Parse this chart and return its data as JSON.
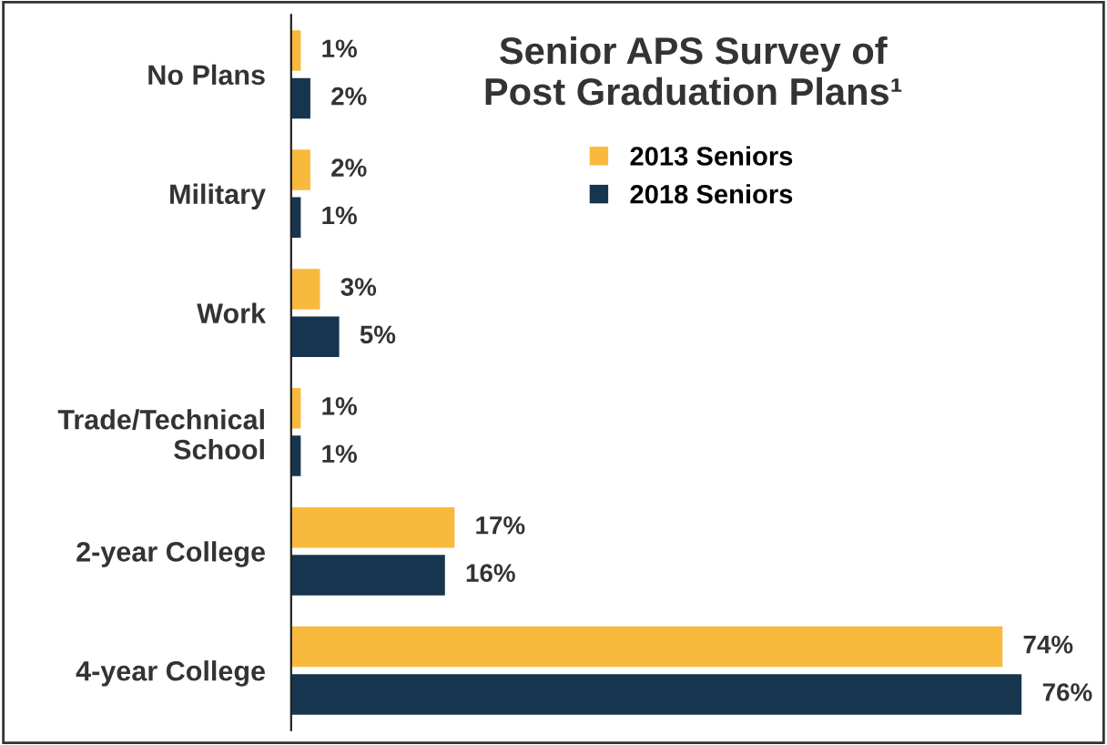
{
  "chart_data": {
    "type": "bar",
    "orientation": "horizontal",
    "title": "Senior APS Survey of\nPost Graduation Plans¹",
    "categories": [
      "No Plans",
      "Military",
      "Work",
      "Trade/Technical\nSchool",
      "2-year College",
      "4-year College"
    ],
    "series": [
      {
        "name": "2013 Seniors",
        "color": "#f9b93c",
        "values": [
          1,
          2,
          3,
          1,
          17,
          74
        ],
        "value_labels": [
          "1%",
          "2%",
          "3%",
          "1%",
          "17%",
          "74%"
        ]
      },
      {
        "name": "2018 Seniors",
        "color": "#17354f",
        "values": [
          2,
          1,
          5,
          1,
          16,
          76
        ],
        "value_labels": [
          "2%",
          "1%",
          "5%",
          "1%",
          "16%",
          "76%"
        ]
      }
    ],
    "tick_labels": "y",
    "grid": false,
    "legend": "top right"
  }
}
